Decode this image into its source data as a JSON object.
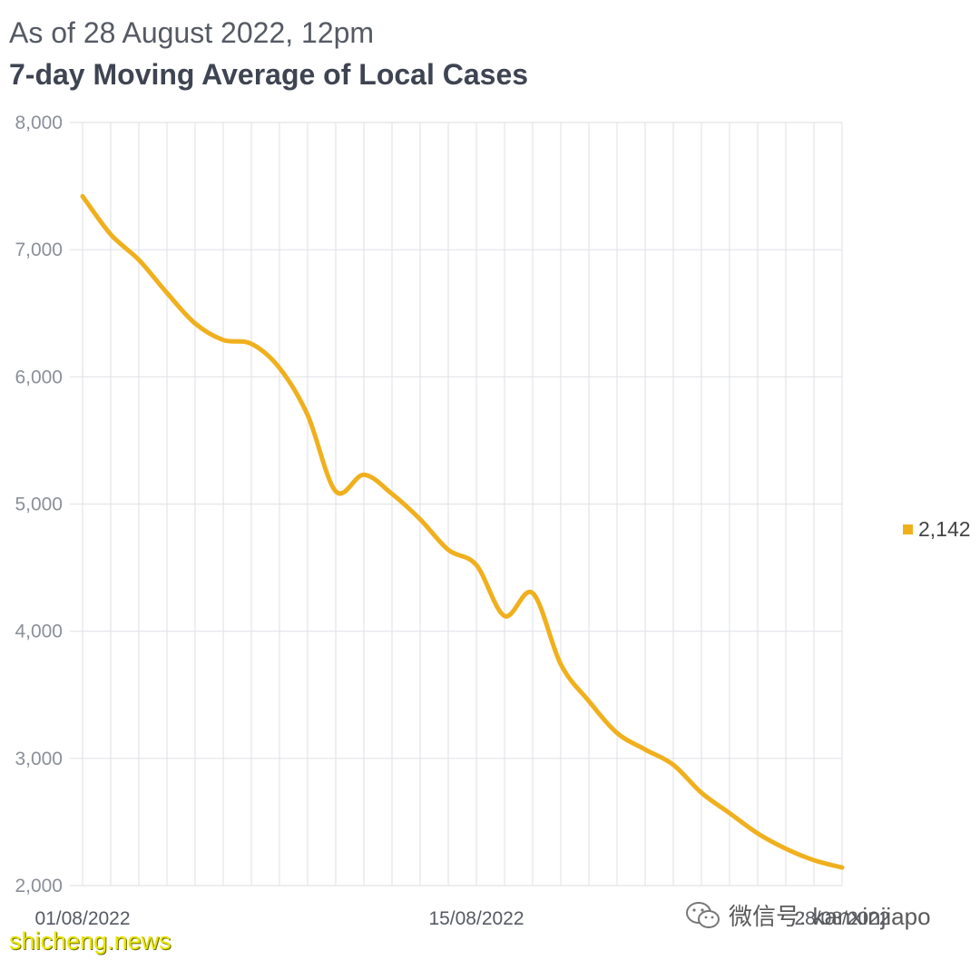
{
  "header": {
    "subtitle": "As of 28 August 2022, 12pm",
    "title": "7-day Moving Average of Local Cases"
  },
  "legend": {
    "label": "2,142",
    "color": "#f0b01e"
  },
  "watermarks": {
    "wechat": "微信号: kanxinjiapo",
    "site": "shicheng.news"
  },
  "chart_data": {
    "type": "line",
    "title": "7-day Moving Average of Local Cases",
    "subtitle": "As of 28 August 2022, 12pm",
    "xlabel": "",
    "ylabel": "",
    "ylim": [
      2000,
      8000
    ],
    "yticks": [
      2000,
      3000,
      4000,
      5000,
      6000,
      7000,
      8000
    ],
    "ytick_labels": [
      "2,000",
      "3,000",
      "4,000",
      "5,000",
      "6,000",
      "7,000",
      "8,000"
    ],
    "x_tick_labels": [
      {
        "index": 0,
        "label": "01/08/2022"
      },
      {
        "index": 14,
        "label": "15/08/2022"
      },
      {
        "index": 27,
        "label": "28/08/2022"
      }
    ],
    "grid": true,
    "line_color": "#f0b01e",
    "series": [
      {
        "name": "2,142",
        "x": [
          "01/08/2022",
          "02/08/2022",
          "03/08/2022",
          "04/08/2022",
          "05/08/2022",
          "06/08/2022",
          "07/08/2022",
          "08/08/2022",
          "09/08/2022",
          "10/08/2022",
          "11/08/2022",
          "12/08/2022",
          "13/08/2022",
          "14/08/2022",
          "15/08/2022",
          "16/08/2022",
          "17/08/2022",
          "18/08/2022",
          "19/08/2022",
          "20/08/2022",
          "21/08/2022",
          "22/08/2022",
          "23/08/2022",
          "24/08/2022",
          "25/08/2022",
          "26/08/2022",
          "27/08/2022",
          "28/08/2022"
        ],
        "values": [
          7420,
          7120,
          6920,
          6660,
          6420,
          6290,
          6260,
          6070,
          5700,
          5100,
          5230,
          5080,
          4880,
          4640,
          4520,
          4120,
          4300,
          3740,
          3450,
          3200,
          3070,
          2950,
          2730,
          2570,
          2410,
          2290,
          2200,
          2142
        ]
      }
    ]
  }
}
